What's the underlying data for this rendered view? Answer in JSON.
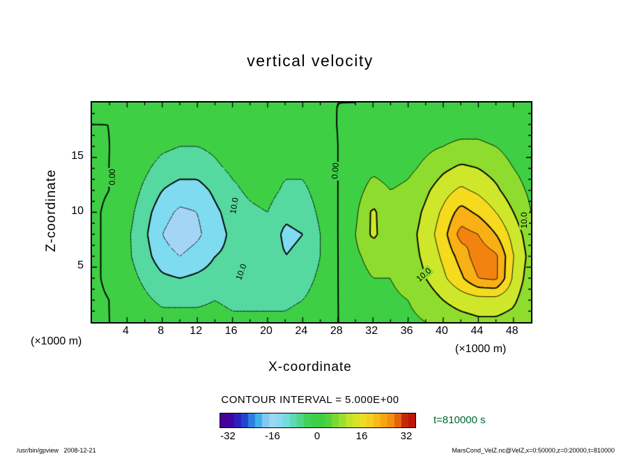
{
  "title": "vertical velocity",
  "axes": {
    "xlabel": "X-coordinate",
    "ylabel": "Z-coordinate",
    "x_unit_left": "(×1000 m)",
    "x_unit_right": "(×1000 m)",
    "x_ticks": [
      4,
      8,
      12,
      16,
      20,
      24,
      28,
      32,
      36,
      40,
      44,
      48
    ],
    "y_ticks": [
      5,
      10,
      15
    ],
    "x_range": [
      0,
      50
    ],
    "y_range": [
      0,
      20
    ]
  },
  "legend": {
    "contour_interval_label": "CONTOUR INTERVAL =  5.000E+00",
    "colorbar_ticks": [
      -32,
      -16,
      0,
      16,
      32
    ],
    "colorbar_range": [
      -35,
      35
    ],
    "time_label": "t=810000 s",
    "time_color": "#006633"
  },
  "footer": {
    "left": "/usr/bin/gpview   2008-12-21",
    "right": "MarsCond_VelZ.nc@VelZ,x=0:50000,z=0:20000,t=810000"
  },
  "chart_data": {
    "type": "heatmap",
    "title": "vertical velocity",
    "xlabel": "X-coordinate",
    "ylabel": "Z-coordinate",
    "x_units": "×1000 m",
    "z_units": "×1000 m",
    "contour_interval": 5.0,
    "color_range": [
      -32,
      32
    ],
    "contour_levels": [
      -15,
      -10,
      -5,
      0,
      5,
      10,
      15,
      20,
      25
    ],
    "contour_labels": [
      "0.00",
      "10.0"
    ],
    "x": [
      0,
      2,
      4,
      6,
      8,
      10,
      12,
      14,
      16,
      18,
      20,
      22,
      24,
      26,
      28,
      30,
      32,
      34,
      36,
      38,
      40,
      42,
      44,
      46,
      48,
      50
    ],
    "z": [
      0,
      2,
      4,
      6,
      8,
      10,
      12,
      14,
      16,
      18,
      20
    ],
    "values": [
      [
        1,
        0,
        -1,
        -2,
        -3,
        -3,
        -3,
        -3,
        -4,
        -4,
        -4,
        -4,
        -3,
        -2,
        0,
        1,
        2,
        3,
        4,
        5,
        7,
        8,
        9,
        9,
        8,
        5
      ],
      [
        1,
        0,
        -2,
        -4,
        -6,
        -6,
        -6,
        -5,
        -6,
        -6,
        -6,
        -6,
        -5,
        -3,
        0,
        2,
        3,
        4,
        5,
        7,
        10,
        12,
        13,
        13,
        11,
        6
      ],
      [
        1,
        -1,
        -3,
        -6,
        -9,
        -10,
        -9,
        -8,
        -8,
        -7,
        -7,
        -8,
        -7,
        -4,
        0,
        3,
        5,
        5,
        7,
        10,
        14,
        19,
        25,
        26,
        14,
        7
      ],
      [
        1,
        -1,
        -4,
        -8,
        -13,
        -15,
        -13,
        -10,
        -9,
        -8,
        -7,
        -10,
        -9,
        -5,
        0,
        4,
        7,
        6,
        8,
        11,
        16,
        22,
        28,
        26,
        15,
        8
      ],
      [
        1,
        -1,
        -4,
        -9,
        -15,
        -18,
        -16,
        -12,
        -9,
        -8,
        -7,
        -11,
        -10,
        -5,
        0,
        5,
        11,
        7,
        8,
        12,
        18,
        27,
        25,
        20,
        13,
        7
      ],
      [
        1,
        -1,
        -3,
        -8,
        -13,
        -16,
        -15,
        -11,
        -8,
        -6,
        -5,
        -9,
        -8,
        -4,
        0,
        4,
        11,
        6,
        7,
        11,
        16,
        22,
        19,
        15,
        10,
        5
      ],
      [
        1,
        0,
        -2,
        -6,
        -10,
        -12,
        -12,
        -9,
        -6,
        -4,
        -3,
        -6,
        -6,
        -3,
        0,
        3,
        7,
        5,
        6,
        9,
        13,
        16,
        14,
        11,
        7,
        4
      ],
      [
        1,
        0,
        -2,
        -4,
        -7,
        -8,
        -8,
        -6,
        -4,
        -3,
        -2,
        -4,
        -4,
        -2,
        0,
        2,
        4,
        3,
        4,
        6,
        9,
        11,
        10,
        8,
        5,
        3
      ],
      [
        1,
        0,
        -1,
        -2,
        -4,
        -5,
        -5,
        -4,
        -2,
        -1,
        -1,
        -2,
        -2,
        -1,
        0,
        1,
        2,
        2,
        3,
        4,
        5,
        6,
        6,
        5,
        3,
        2
      ],
      [
        0,
        0,
        -1,
        -1,
        -2,
        -3,
        -2,
        -2,
        -1,
        -1,
        0,
        -1,
        -1,
        0,
        0,
        1,
        1,
        1,
        2,
        2,
        3,
        3,
        3,
        2,
        2,
        1
      ],
      [
        0,
        0,
        0,
        -1,
        -1,
        -1,
        -1,
        -1,
        0,
        0,
        0,
        0,
        0,
        0,
        0,
        0,
        1,
        1,
        1,
        1,
        1,
        1,
        1,
        1,
        1,
        0
      ]
    ],
    "colormap": [
      [
        -32,
        "#440099"
      ],
      [
        -27,
        "#2233cc"
      ],
      [
        -22,
        "#2fa8ea"
      ],
      [
        -17.5,
        "#a5d5f5"
      ],
      [
        -12.5,
        "#7fdcf0"
      ],
      [
        -7.5,
        "#55d9a0"
      ],
      [
        -2.5,
        "#3ecf44"
      ],
      [
        2.5,
        "#3ecf44"
      ],
      [
        7.5,
        "#8edc2e"
      ],
      [
        12.5,
        "#cfe72a"
      ],
      [
        17.5,
        "#f5da1e"
      ],
      [
        22.5,
        "#f8b014"
      ],
      [
        27.5,
        "#f2830e"
      ],
      [
        32,
        "#bb1606"
      ]
    ],
    "contour_label_marks": [
      {
        "text": "0.00",
        "x": 2.3,
        "z": 13.2,
        "rot": -90
      },
      {
        "text": "10.0",
        "x": 16.2,
        "z": 10.6,
        "rot": -80
      },
      {
        "text": "10.0",
        "x": 17.0,
        "z": 4.6,
        "rot": -70
      },
      {
        "text": "0.00",
        "x": 27.7,
        "z": 13.8,
        "rot": -85
      },
      {
        "text": "10.0",
        "x": 37.8,
        "z": 4.3,
        "rot": -40
      },
      {
        "text": "10.0",
        "x": 49.2,
        "z": 9.3,
        "rot": -90
      }
    ]
  }
}
